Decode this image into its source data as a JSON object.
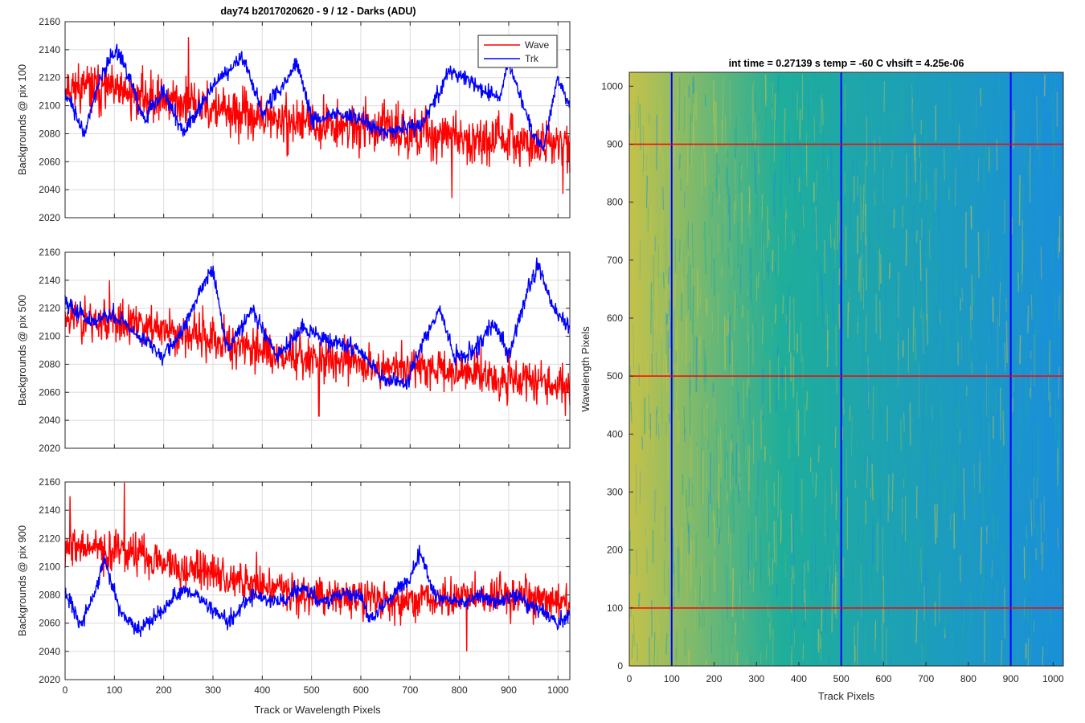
{
  "figure": {
    "title": "day74 b2017020620 - 9 / 12 - Darks (ADU)",
    "shared_xlabel": "Track or Wavelength Pixels"
  },
  "chart_data": [
    {
      "type": "line",
      "ylabel": "Backgrounds @ pix 100",
      "xlim": [
        0,
        1024
      ],
      "ylim": [
        2020,
        2160
      ],
      "xticks": [
        0,
        100,
        200,
        300,
        400,
        500,
        600,
        700,
        800,
        900,
        1000
      ],
      "yticks": [
        2020,
        2040,
        2060,
        2080,
        2100,
        2120,
        2140,
        2160
      ],
      "grid": true,
      "legend": {
        "placement": "top-right",
        "entries": [
          "Wave",
          "Trk"
        ]
      },
      "series": [
        {
          "name": "Wave",
          "color": "#ff0000",
          "n_points": 1024,
          "noise": 14,
          "trend": [
            [
              0,
              2115
            ],
            [
              200,
              2105
            ],
            [
              400,
              2090
            ],
            [
              600,
              2085
            ],
            [
              800,
              2078
            ],
            [
              1024,
              2070
            ]
          ],
          "spikes": [
            [
              250,
              2149
            ],
            [
              785,
              2034
            ],
            [
              1010,
              2037
            ]
          ]
        },
        {
          "name": "Trk",
          "color": "#0000ff",
          "n_points": 1024,
          "noise": 5,
          "trend": [
            [
              0,
              2110
            ],
            [
              40,
              2080
            ],
            [
              70,
              2120
            ],
            [
              105,
              2140
            ],
            [
              130,
              2120
            ],
            [
              160,
              2090
            ],
            [
              200,
              2110
            ],
            [
              240,
              2080
            ],
            [
              300,
              2115
            ],
            [
              360,
              2135
            ],
            [
              400,
              2095
            ],
            [
              470,
              2130
            ],
            [
              500,
              2090
            ],
            [
              550,
              2095
            ],
            [
              600,
              2090
            ],
            [
              650,
              2080
            ],
            [
              690,
              2085
            ],
            [
              720,
              2085
            ],
            [
              760,
              2110
            ],
            [
              780,
              2125
            ],
            [
              830,
              2115
            ],
            [
              880,
              2105
            ],
            [
              900,
              2130
            ],
            [
              950,
              2080
            ],
            [
              970,
              2070
            ],
            [
              1000,
              2120
            ],
            [
              1024,
              2100
            ]
          ]
        }
      ]
    },
    {
      "type": "line",
      "ylabel": "Backgrounds @ pix 500",
      "xlim": [
        0,
        1024
      ],
      "ylim": [
        2020,
        2160
      ],
      "xticks": [
        0,
        100,
        200,
        300,
        400,
        500,
        600,
        700,
        800,
        900,
        1000
      ],
      "yticks": [
        2020,
        2040,
        2060,
        2080,
        2100,
        2120,
        2140,
        2160
      ],
      "grid": true,
      "series": [
        {
          "name": "Wave",
          "color": "#ff0000",
          "n_points": 1024,
          "noise": 13,
          "trend": [
            [
              0,
              2115
            ],
            [
              200,
              2105
            ],
            [
              400,
              2090
            ],
            [
              600,
              2080
            ],
            [
              800,
              2075
            ],
            [
              1024,
              2065
            ]
          ],
          "spikes": [
            [
              90,
              2140
            ],
            [
              515,
              2043
            ],
            [
              1015,
              2043
            ]
          ]
        },
        {
          "name": "Trk",
          "color": "#0000ff",
          "n_points": 1024,
          "noise": 5,
          "trend": [
            [
              0,
              2125
            ],
            [
              50,
              2110
            ],
            [
              100,
              2115
            ],
            [
              150,
              2100
            ],
            [
              200,
              2085
            ],
            [
              240,
              2105
            ],
            [
              270,
              2130
            ],
            [
              300,
              2148
            ],
            [
              330,
              2090
            ],
            [
              380,
              2120
            ],
            [
              430,
              2085
            ],
            [
              480,
              2105
            ],
            [
              550,
              2095
            ],
            [
              600,
              2090
            ],
            [
              640,
              2070
            ],
            [
              690,
              2065
            ],
            [
              720,
              2090
            ],
            [
              760,
              2120
            ],
            [
              790,
              2085
            ],
            [
              830,
              2090
            ],
            [
              870,
              2110
            ],
            [
              900,
              2085
            ],
            [
              940,
              2135
            ],
            [
              960,
              2150
            ],
            [
              990,
              2120
            ],
            [
              1024,
              2105
            ]
          ]
        }
      ]
    },
    {
      "type": "line",
      "ylabel": "Backgrounds @ pix 900",
      "xlabel": "Track or Wavelength Pixels",
      "xlim": [
        0,
        1024
      ],
      "ylim": [
        2020,
        2160
      ],
      "xticks": [
        0,
        100,
        200,
        300,
        400,
        500,
        600,
        700,
        800,
        900,
        1000
      ],
      "yticks": [
        2020,
        2040,
        2060,
        2080,
        2100,
        2120,
        2140,
        2160
      ],
      "grid": true,
      "series": [
        {
          "name": "Wave",
          "color": "#ff0000",
          "n_points": 1024,
          "noise": 12,
          "trend": [
            [
              0,
              2115
            ],
            [
              150,
              2108
            ],
            [
              300,
              2095
            ],
            [
              500,
              2080
            ],
            [
              700,
              2075
            ],
            [
              900,
              2080
            ],
            [
              1024,
              2075
            ]
          ],
          "spikes": [
            [
              120,
              2160
            ],
            [
              10,
              2150
            ],
            [
              815,
              2040
            ]
          ]
        },
        {
          "name": "Trk",
          "color": "#0000ff",
          "n_points": 1024,
          "noise": 5,
          "trend": [
            [
              0,
              2085
            ],
            [
              30,
              2060
            ],
            [
              60,
              2080
            ],
            [
              80,
              2105
            ],
            [
              110,
              2070
            ],
            [
              150,
              2055
            ],
            [
              200,
              2070
            ],
            [
              240,
              2085
            ],
            [
              280,
              2075
            ],
            [
              330,
              2060
            ],
            [
              380,
              2080
            ],
            [
              440,
              2075
            ],
            [
              480,
              2085
            ],
            [
              520,
              2075
            ],
            [
              560,
              2080
            ],
            [
              600,
              2080
            ],
            [
              620,
              2060
            ],
            [
              650,
              2075
            ],
            [
              700,
              2090
            ],
            [
              720,
              2110
            ],
            [
              750,
              2080
            ],
            [
              800,
              2075
            ],
            [
              850,
              2080
            ],
            [
              880,
              2075
            ],
            [
              910,
              2080
            ],
            [
              960,
              2070
            ],
            [
              1000,
              2060
            ],
            [
              1024,
              2065
            ]
          ]
        }
      ]
    },
    {
      "type": "heatmap",
      "title": "int time = 0.27139 s   temp = -60 C   vhsift = 4.25e-06",
      "xlabel": "Track Pixels",
      "ylabel": "Wavelength Pixels",
      "xlim": [
        0,
        1024
      ],
      "ylim": [
        0,
        1024
      ],
      "xticks": [
        0,
        100,
        200,
        300,
        400,
        500,
        600,
        700,
        800,
        900,
        1000
      ],
      "yticks": [
        0,
        100,
        200,
        300,
        400,
        500,
        600,
        700,
        800,
        900,
        1000
      ],
      "colormap": {
        "low": "#1a8fd9",
        "mid": "#1fae9a",
        "high": "#c4c24a"
      },
      "vertical_markers": {
        "x": [
          100,
          500,
          900
        ],
        "color": "#0000ff"
      },
      "horizontal_markers": {
        "y": [
          100,
          500,
          900
        ],
        "color": "#ff0000"
      }
    }
  ]
}
